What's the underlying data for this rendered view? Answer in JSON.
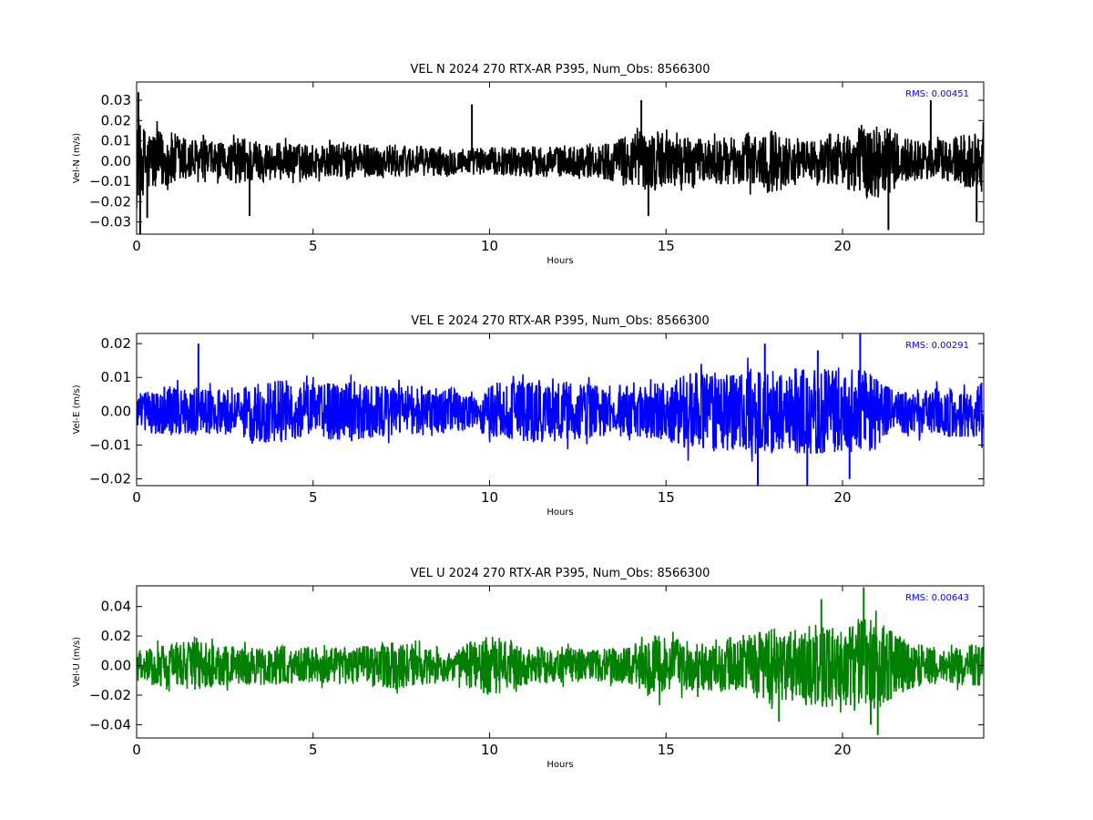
{
  "chart_data": [
    {
      "type": "line",
      "title": "VEL N 2024 270 RTX-AR  P395, Num_Obs: 8566300",
      "xlabel": "Hours",
      "ylabel": "Vel-N (m/s)",
      "xlim": [
        0,
        24
      ],
      "ylim": [
        -0.036,
        0.039
      ],
      "xticks": [
        "0",
        "5",
        "10",
        "15",
        "20"
      ],
      "yticks": [
        "0.03",
        "0.02",
        "0.01",
        "0.00",
        "−0.01",
        "−0.02",
        "−0.03"
      ],
      "annotation": "RMS:  0.00451",
      "rms": 0.00451,
      "grid": false,
      "color": "#000000",
      "series": [
        {
          "envelope_hours": [
            0,
            0.5,
            1,
            1.5,
            2,
            2.5,
            3,
            3.5,
            4,
            5,
            6,
            7,
            8,
            9,
            9.5,
            10,
            11,
            12,
            13,
            13.5,
            14,
            14.5,
            15,
            15.5,
            16,
            17,
            17.5,
            18,
            18.5,
            19,
            19.5,
            20,
            20.5,
            21,
            21.5,
            22,
            22.5,
            23,
            23.5,
            24
          ],
          "envelope_amplitude": [
            0.022,
            0.018,
            0.017,
            0.014,
            0.012,
            0.01,
            0.015,
            0.012,
            0.011,
            0.01,
            0.01,
            0.01,
            0.009,
            0.008,
            0.008,
            0.008,
            0.009,
            0.009,
            0.01,
            0.012,
            0.016,
            0.018,
            0.016,
            0.014,
            0.013,
            0.014,
            0.017,
            0.019,
            0.015,
            0.012,
            0.013,
            0.015,
            0.021,
            0.022,
            0.017,
            0.012,
            0.012,
            0.013,
            0.016,
            0.021
          ],
          "spikes": [
            [
              0.05,
              0.034
            ],
            [
              0.1,
              -0.036
            ],
            [
              0.3,
              -0.028
            ],
            [
              3.2,
              -0.027
            ],
            [
              9.5,
              0.028
            ],
            [
              14.3,
              0.03
            ],
            [
              14.5,
              -0.027
            ],
            [
              21.3,
              -0.034
            ],
            [
              22.5,
              0.03
            ],
            [
              23.8,
              -0.03
            ]
          ]
        }
      ]
    },
    {
      "type": "line",
      "title": "VEL E 2024 270 RTX-AR  P395, Num_Obs: 8566300",
      "xlabel": "Hours",
      "ylabel": "Vel-E (m/s)",
      "xlim": [
        0,
        24
      ],
      "ylim": [
        -0.022,
        0.023
      ],
      "xticks": [
        "0",
        "5",
        "10",
        "15",
        "20"
      ],
      "yticks": [
        "0.02",
        "0.01",
        "0.00",
        "−0.01",
        "−0.02"
      ],
      "annotation": "RMS:  0.00291",
      "rms": 0.00291,
      "grid": false,
      "color": "#0000ff",
      "series": [
        {
          "envelope_hours": [
            0,
            0.5,
            1,
            1.5,
            2,
            2.5,
            3,
            3.2,
            4,
            5,
            6,
            7,
            8,
            9,
            9.5,
            10,
            11,
            12,
            13,
            14,
            15,
            15.5,
            16,
            17,
            17.5,
            18,
            18.5,
            19,
            19.5,
            20,
            20.5,
            21,
            21.5,
            22,
            22.5,
            23,
            23.5,
            24
          ],
          "envelope_amplitude": [
            0.006,
            0.008,
            0.009,
            0.009,
            0.008,
            0.008,
            0.007,
            0.012,
            0.011,
            0.01,
            0.01,
            0.009,
            0.009,
            0.008,
            0.006,
            0.009,
            0.011,
            0.011,
            0.009,
            0.009,
            0.01,
            0.013,
            0.014,
            0.014,
            0.015,
            0.015,
            0.015,
            0.015,
            0.015,
            0.014,
            0.015,
            0.012,
            0.007,
            0.008,
            0.008,
            0.009,
            0.01,
            0.01
          ],
          "spikes": [
            [
              1.75,
              0.02
            ],
            [
              17.6,
              -0.022
            ],
            [
              17.8,
              0.02
            ],
            [
              19,
              -0.022
            ],
            [
              19.3,
              0.018
            ],
            [
              20.5,
              0.023
            ],
            [
              20.2,
              -0.02
            ]
          ]
        }
      ]
    },
    {
      "type": "line",
      "title": "VEL U 2024 270 RTX-AR  P395, Num_Obs: 8566300",
      "xlabel": "Hours",
      "ylabel": "Vel-U (m/s)",
      "xlim": [
        0,
        24
      ],
      "ylim": [
        -0.049,
        0.054
      ],
      "xticks": [
        "0",
        "5",
        "10",
        "15",
        "20"
      ],
      "yticks": [
        "0.04",
        "0.02",
        "0.00",
        "−0.02",
        "−0.04"
      ],
      "annotation": "RMS:  0.00643",
      "rms": 0.00643,
      "grid": false,
      "color": "#008000",
      "series": [
        {
          "envelope_hours": [
            0,
            0.5,
            1,
            1.5,
            2,
            2.5,
            3,
            4,
            5,
            6,
            7,
            7.5,
            8,
            9,
            9.5,
            10,
            10.5,
            11,
            12,
            13,
            14,
            14.5,
            15,
            15.5,
            16,
            17,
            17.5,
            18,
            18.5,
            19,
            19.5,
            20,
            20.5,
            21,
            21.5,
            22,
            22.5,
            23,
            23.5,
            24
          ],
          "envelope_amplitude": [
            0.012,
            0.016,
            0.018,
            0.02,
            0.018,
            0.016,
            0.015,
            0.016,
            0.014,
            0.015,
            0.018,
            0.02,
            0.016,
            0.013,
            0.018,
            0.025,
            0.02,
            0.016,
            0.014,
            0.013,
            0.015,
            0.025,
            0.024,
            0.02,
            0.02,
            0.024,
            0.026,
            0.03,
            0.028,
            0.032,
            0.035,
            0.034,
            0.038,
            0.036,
            0.025,
            0.018,
            0.015,
            0.014,
            0.018,
            0.016
          ],
          "spikes": [
            [
              20.6,
              0.053
            ],
            [
              21,
              -0.047
            ],
            [
              20.8,
              -0.04
            ],
            [
              19.4,
              0.045
            ],
            [
              18.2,
              -0.038
            ]
          ]
        }
      ]
    }
  ]
}
